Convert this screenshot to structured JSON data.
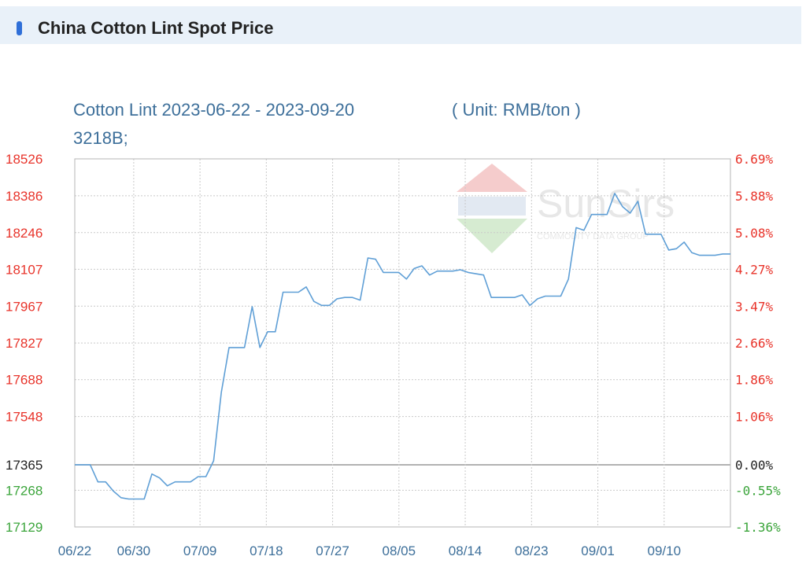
{
  "header": {
    "title": "China Cotton Lint Spot Price"
  },
  "chart_data": {
    "type": "line",
    "title": "Cotton Lint 2023-06-22 - 2023-09-20",
    "unit_label": "( Unit: RMB/ton )",
    "subtitle": "3218B;",
    "watermark": {
      "brand": "SunSirs",
      "tagline": "COMMODITY DATA GROUP"
    },
    "colors": {
      "line": "#5f9fd6",
      "up": "#e8332a",
      "down": "#3aa43a",
      "base": "#222222",
      "grid": "#c9c9c9",
      "baseline": "#999999"
    },
    "base_value": 17365,
    "ylim": [
      17129,
      18526
    ],
    "y_ticks_left": [
      "18526",
      "18386",
      "18246",
      "18107",
      "17967",
      "17827",
      "17688",
      "17548",
      "17365",
      "17268",
      "17129"
    ],
    "y_ticks_right": [
      "6.69%",
      "5.88%",
      "5.08%",
      "4.27%",
      "3.47%",
      "2.66%",
      "1.86%",
      "1.06%",
      "0.00%",
      "-0.55%",
      "-1.36%"
    ],
    "x_ticks": [
      "06/22",
      "06/30",
      "07/09",
      "07/18",
      "07/27",
      "08/05",
      "08/14",
      "08/23",
      "09/01",
      "09/10"
    ],
    "series": [
      {
        "values": [
          17365,
          17365,
          17365,
          17300,
          17300,
          17265,
          17240,
          17235,
          17235,
          17235,
          17330,
          17315,
          17285,
          17300,
          17300,
          17300,
          17320,
          17320,
          17380,
          17640,
          17810,
          17810,
          17810,
          17965,
          17810,
          17870,
          17870,
          18020,
          18020,
          18020,
          18040,
          17985,
          17970,
          17970,
          17995,
          18000,
          18000,
          17990,
          18150,
          18145,
          18095,
          18095,
          18095,
          18070,
          18110,
          18120,
          18085,
          18100,
          18100,
          18100,
          18105,
          18095,
          18090,
          18085,
          18000,
          18000,
          18000,
          18000,
          18010,
          17970,
          17995,
          18005,
          18005,
          18005,
          18070,
          18265,
          18255,
          18315,
          18315,
          18315,
          18395,
          18345,
          18320,
          18365,
          18240,
          18240,
          18240,
          18180,
          18185,
          18210,
          18170,
          18160,
          18160,
          18160,
          18165,
          18165
        ]
      }
    ]
  }
}
